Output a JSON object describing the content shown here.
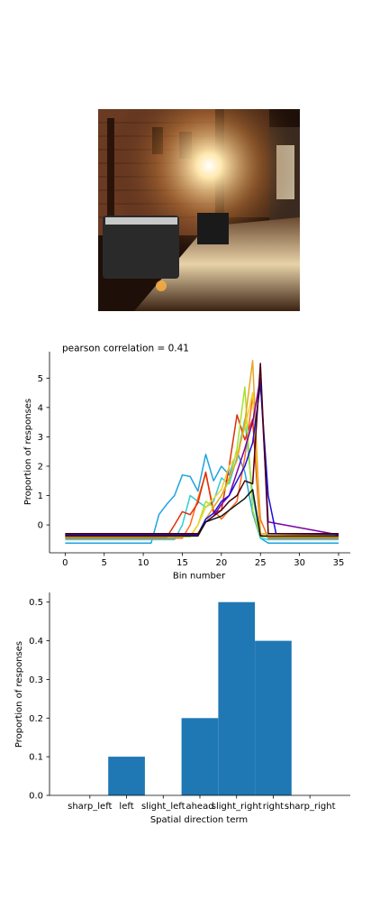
{
  "photo": {
    "icon": "alley-photo",
    "colors": {
      "dark": "#1e0f08",
      "brick": "#6b3a22",
      "light": "#ffe9b0"
    }
  },
  "chart_data": [
    {
      "type": "line",
      "title": "pearson correlation = 0.41",
      "xlabel": "Bin number",
      "ylabel": "Proportion of responses",
      "xlim": [
        -2,
        36.5
      ],
      "ylim": [
        -0.95,
        5.9
      ],
      "xticks": [
        0,
        5,
        10,
        15,
        20,
        25,
        30,
        35
      ],
      "yticks": [
        0,
        1,
        2,
        3,
        4,
        5
      ],
      "series": [
        {
          "color": "#1fa3e0",
          "x": [
            0,
            11,
            12,
            13,
            14,
            15,
            16,
            17,
            18,
            19,
            20,
            21,
            22,
            23,
            24,
            25,
            26,
            27,
            35
          ],
          "y": [
            -0.62,
            -0.62,
            0.35,
            0.7,
            1.0,
            1.7,
            1.65,
            1.15,
            2.4,
            1.5,
            2.0,
            1.7,
            2.5,
            1.8,
            0.4,
            -0.45,
            -0.62,
            -0.62,
            -0.62
          ]
        },
        {
          "color": "#33ccd9",
          "x": [
            0,
            14,
            15,
            16,
            17,
            18,
            19,
            20,
            21,
            22,
            23,
            24,
            25,
            26,
            35
          ],
          "y": [
            -0.5,
            -0.5,
            0.0,
            1.0,
            0.8,
            0.6,
            0.8,
            1.6,
            1.4,
            2.3,
            3.6,
            1.0,
            -0.45,
            -0.5,
            -0.5
          ]
        },
        {
          "color": "#ff6a1a",
          "x": [
            0,
            15,
            16,
            17,
            18,
            19,
            20,
            21,
            22,
            23,
            24,
            25,
            26,
            35
          ],
          "y": [
            -0.45,
            -0.45,
            0.0,
            0.9,
            1.75,
            0.5,
            0.2,
            0.5,
            0.8,
            2.3,
            4.4,
            0.2,
            -0.45,
            -0.45
          ]
        },
        {
          "color": "#e03008",
          "x": [
            0,
            13,
            14,
            15,
            16,
            17,
            18,
            19,
            20,
            21,
            22,
            23,
            24,
            25,
            26,
            35
          ],
          "y": [
            -0.42,
            -0.42,
            0.0,
            0.45,
            0.35,
            0.75,
            1.8,
            0.4,
            0.5,
            2.0,
            3.75,
            2.9,
            3.6,
            -0.35,
            -0.42,
            -0.42
          ]
        },
        {
          "color": "#a6e22e",
          "x": [
            0,
            16,
            17,
            18,
            19,
            20,
            21,
            22,
            23,
            24,
            25,
            35
          ],
          "y": [
            -0.4,
            -0.4,
            0.0,
            0.8,
            0.6,
            1.0,
            1.5,
            2.6,
            4.7,
            0.5,
            -0.4,
            -0.4
          ]
        },
        {
          "color": "#f2d22a",
          "x": [
            0,
            16,
            17,
            18,
            19,
            20,
            21,
            22,
            23,
            24,
            25,
            35
          ],
          "y": [
            -0.38,
            -0.38,
            0.0,
            0.6,
            0.9,
            1.2,
            2.0,
            2.4,
            3.3,
            4.5,
            -0.3,
            -0.38
          ]
        },
        {
          "color": "#e8a422",
          "x": [
            0,
            17,
            18,
            19,
            20,
            21,
            22,
            23,
            24,
            25,
            35
          ],
          "y": [
            -0.36,
            -0.36,
            0.2,
            0.6,
            1.0,
            1.6,
            2.2,
            3.5,
            5.6,
            -0.3,
            -0.36
          ]
        },
        {
          "color": "#7a00a8",
          "x": [
            0,
            17,
            18,
            19,
            20,
            21,
            22,
            23,
            24,
            25,
            26,
            35
          ],
          "y": [
            -0.34,
            -0.34,
            0.1,
            0.3,
            0.7,
            1.0,
            1.8,
            2.6,
            3.5,
            5.0,
            0.1,
            -0.34
          ]
        },
        {
          "color": "#1a10d8",
          "x": [
            0,
            17,
            18,
            19,
            20,
            21,
            22,
            23,
            24,
            25,
            26,
            27,
            35
          ],
          "y": [
            -0.32,
            -0.32,
            0.2,
            0.4,
            0.8,
            1.0,
            1.5,
            2.0,
            2.8,
            4.8,
            1.0,
            -0.3,
            -0.32
          ]
        },
        {
          "color": "#4a0010",
          "x": [
            0,
            17,
            18,
            19,
            20,
            21,
            22,
            23,
            24,
            25,
            26,
            35
          ],
          "y": [
            -0.3,
            -0.3,
            0.1,
            0.3,
            0.5,
            0.8,
            1.0,
            1.5,
            1.4,
            5.5,
            -0.3,
            -0.3
          ]
        },
        {
          "color": "#111111",
          "x": [
            0,
            17,
            18,
            19,
            20,
            21,
            22,
            23,
            24,
            25,
            35
          ],
          "y": [
            -0.38,
            -0.38,
            0.1,
            0.2,
            0.3,
            0.5,
            0.7,
            0.9,
            1.2,
            -0.38,
            -0.38
          ]
        }
      ]
    },
    {
      "type": "bar",
      "xlabel": "Spatial direction term",
      "ylabel": "Proportion of responses",
      "categories": [
        "sharp_left",
        "left",
        "slight_left",
        "ahead",
        "slight_right",
        "right",
        "sharp_right"
      ],
      "values": [
        0.0,
        0.1,
        0.0,
        0.2,
        0.5,
        0.4,
        0.0
      ],
      "ylim": [
        0,
        0.525
      ],
      "yticks": [
        0.0,
        0.1,
        0.2,
        0.3,
        0.4,
        0.5
      ],
      "bar_color": "#1f77b4"
    }
  ]
}
